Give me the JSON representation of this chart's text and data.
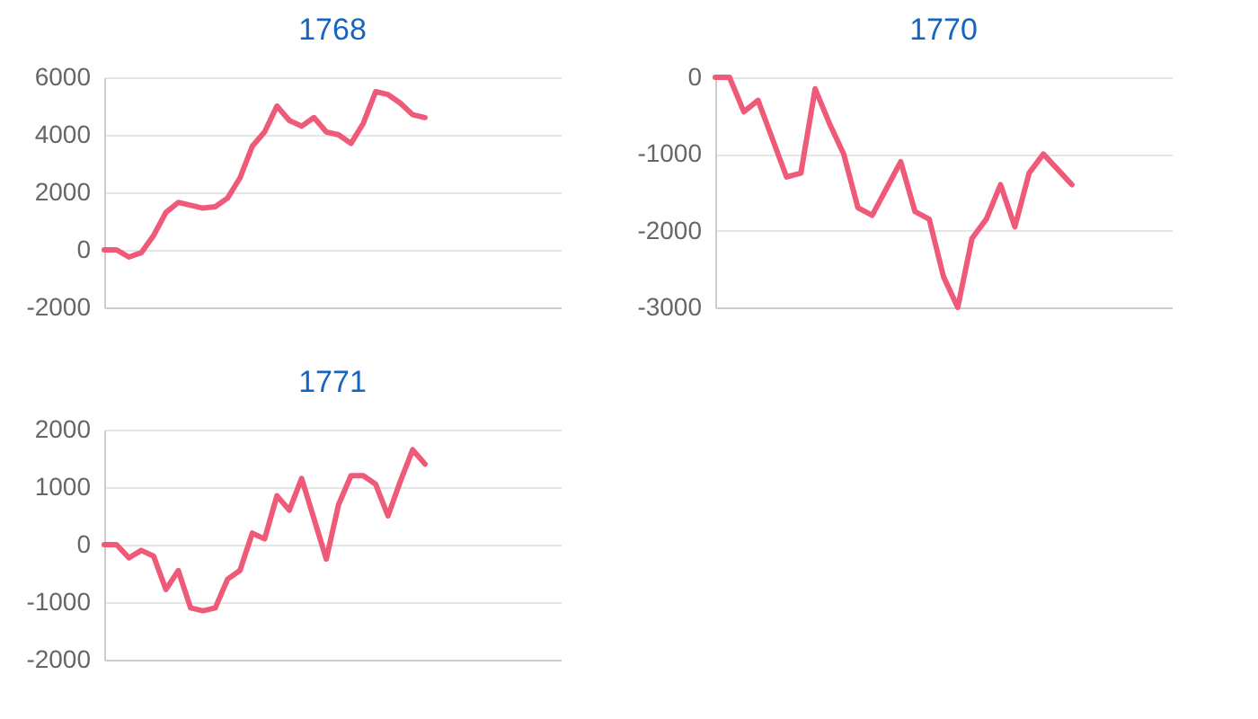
{
  "chart_data": [
    {
      "type": "line",
      "title": "1768",
      "categories": [
        null,
        null,
        null,
        null,
        null,
        null,
        null,
        null,
        null,
        null,
        null,
        null,
        null,
        null,
        null,
        null,
        null,
        null,
        null,
        null,
        null,
        null,
        null,
        null,
        null,
        null,
        null,
        null,
        null,
        null,
        null,
        null,
        null,
        null,
        null,
        null,
        null,
        null
      ],
      "series": [
        {
          "color": "#ee5a78",
          "values": [
            0,
            0,
            -250,
            -100,
            500,
            1300,
            1650,
            1550,
            1450,
            1500,
            1800,
            2500,
            3600,
            4100,
            5000,
            4500,
            4300,
            4600,
            4100,
            4000,
            3700,
            4400,
            5500,
            5400,
            5100,
            4700,
            4600,
            null,
            null,
            null,
            null,
            null,
            null,
            null,
            null,
            null,
            null,
            null
          ]
        }
      ],
      "ylim": [
        -2000,
        6000
      ],
      "yticks": [
        -2000,
        0,
        2000,
        4000,
        6000
      ],
      "grid": "y",
      "tick_labels": "y"
    },
    {
      "type": "line",
      "title": "1770",
      "categories": [
        null,
        null,
        null,
        null,
        null,
        null,
        null,
        null,
        null,
        null,
        null,
        null,
        null,
        null,
        null,
        null,
        null,
        null,
        null,
        null,
        null,
        null,
        null,
        null,
        null,
        null,
        null,
        null,
        null,
        null,
        null,
        null,
        null
      ],
      "series": [
        {
          "color": "#ee5a78",
          "values": [
            0,
            0,
            -450,
            -300,
            -800,
            -1300,
            -1250,
            -150,
            -600,
            -1000,
            -1700,
            -1800,
            -1450,
            -1100,
            -1750,
            -1850,
            -2600,
            -3000,
            -2100,
            -1850,
            -1400,
            -1950,
            -1250,
            -1000,
            -1200,
            -1400,
            null,
            null,
            null,
            null,
            null,
            null,
            null
          ]
        }
      ],
      "ylim": [
        -3000,
        0
      ],
      "yticks": [
        -3000,
        -2000,
        -1000,
        0
      ],
      "grid": "y",
      "tick_labels": "y"
    },
    {
      "type": "line",
      "title": "1771",
      "categories": [
        null,
        null,
        null,
        null,
        null,
        null,
        null,
        null,
        null,
        null,
        null,
        null,
        null,
        null,
        null,
        null,
        null,
        null,
        null,
        null,
        null,
        null,
        null,
        null,
        null,
        null,
        null,
        null,
        null,
        null,
        null,
        null,
        null,
        null,
        null,
        null,
        null,
        null
      ],
      "series": [
        {
          "color": "#ee5a78",
          "values": [
            0,
            0,
            -230,
            -100,
            -200,
            -780,
            -450,
            -1100,
            -1150,
            -1100,
            -600,
            -450,
            200,
            100,
            850,
            600,
            1150,
            450,
            -250,
            700,
            1200,
            1200,
            1050,
            500,
            1100,
            1650,
            1400,
            null,
            null,
            null,
            null,
            null,
            null,
            null,
            null,
            null,
            null,
            null
          ]
        }
      ],
      "ylim": [
        -2000,
        2000
      ],
      "yticks": [
        -2000,
        -1000,
        0,
        1000,
        2000
      ],
      "grid": "y",
      "tick_labels": "y"
    }
  ]
}
